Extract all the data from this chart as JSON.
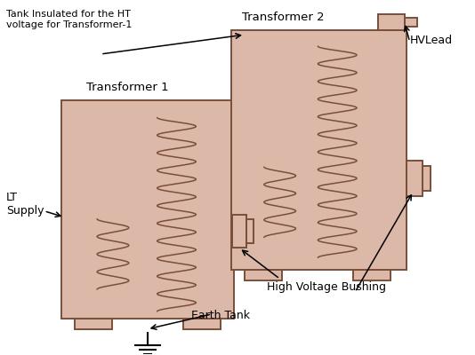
{
  "tank_fill_color": "#dbb8a8",
  "tank_edge_color": "#7a4f3a",
  "coil_color": "#7a4f3a",
  "background_color": "#ffffff",
  "t1_label": "Transformer 1",
  "t2_label": "Transformer 2",
  "lt_label": "LT\nSupply",
  "hv_bushing_label": "High Voltage Bushing",
  "earth_tank_label": "Earth Tank",
  "hv_lead_label": "HVLead",
  "tank_insulated_label": "Tank Insulated for the HT\nvoltage for Transformer-1",
  "figsize": [
    5.34,
    4.0
  ],
  "dpi": 100
}
